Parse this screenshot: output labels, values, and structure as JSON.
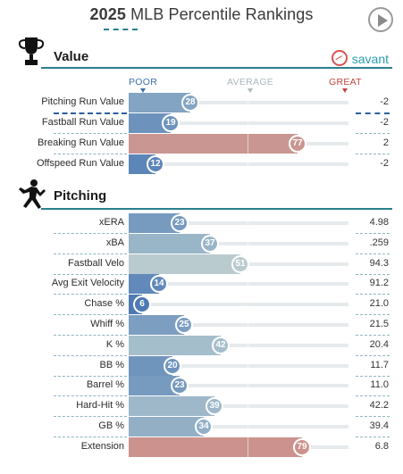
{
  "header": {
    "year": "2025",
    "title_rest": " MLB Percentile Rankings",
    "play_button": "play-icon"
  },
  "value_section": {
    "title": "Value",
    "icon": "trophy-icon",
    "brand": "savant",
    "scale": {
      "poor": "POOR",
      "average": "AVERAGE",
      "great": "GREAT"
    },
    "rows": [
      {
        "label": "Pitching Run Value",
        "percentile": "28",
        "value": "-2"
      },
      {
        "label": "Fastball Run Value",
        "percentile": "19",
        "value": "-2"
      },
      {
        "label": "Breaking Run Value",
        "percentile": "77",
        "value": "2"
      },
      {
        "label": "Offspeed Run Value",
        "percentile": "12",
        "value": "-2"
      }
    ]
  },
  "pitching_section": {
    "title": "Pitching",
    "icon": "pitcher-icon",
    "rows": [
      {
        "label": "xERA",
        "percentile": "23",
        "value": "4.98"
      },
      {
        "label": "xBA",
        "percentile": "37",
        "value": ".259"
      },
      {
        "label": "Fastball Velo",
        "percentile": "51",
        "value": "94.3"
      },
      {
        "label": "Avg Exit Velocity",
        "percentile": "14",
        "value": "91.2"
      },
      {
        "label": "Chase %",
        "percentile": "6",
        "value": "21.0"
      },
      {
        "label": "Whiff %",
        "percentile": "25",
        "value": "21.5"
      },
      {
        "label": "K %",
        "percentile": "42",
        "value": "20.4"
      },
      {
        "label": "BB %",
        "percentile": "20",
        "value": "11.7"
      },
      {
        "label": "Barrel %",
        "percentile": "23",
        "value": "11.0"
      },
      {
        "label": "Hard-Hit %",
        "percentile": "39",
        "value": "42.2"
      },
      {
        "label": "GB %",
        "percentile": "34",
        "value": "39.4"
      },
      {
        "label": "Extension",
        "percentile": "79",
        "value": "6.8"
      }
    ]
  },
  "colors": {
    "accent": "#2b7f8e",
    "poor": "#3f6fb0",
    "average": "#b9cdd1",
    "great": "#d9675c"
  }
}
